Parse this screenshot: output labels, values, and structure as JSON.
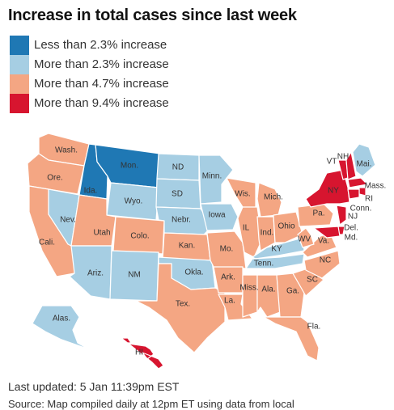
{
  "title": "Increase in total cases since last week",
  "legend": [
    {
      "label": "Less than 2.3% increase",
      "color": "#1f78b4"
    },
    {
      "label": "More than 2.3% increase",
      "color": "#a6cee3"
    },
    {
      "label": "More than 4.7% increase",
      "color": "#f4a683"
    },
    {
      "label": "More than 9.4% increase",
      "color": "#d7152f"
    }
  ],
  "chart_data": {
    "type": "choropleth",
    "title": "Increase in total cases since last week",
    "categories": [
      "Less than 2.3% increase",
      "More than 2.3% increase",
      "More than 4.7% increase",
      "More than 9.4% increase"
    ],
    "states": [
      {
        "label": "Wash.",
        "category": 2
      },
      {
        "label": "Ore.",
        "category": 2
      },
      {
        "label": "Cali.",
        "category": 2
      },
      {
        "label": "Nev.",
        "category": 1
      },
      {
        "label": "Ida.",
        "category": 0
      },
      {
        "label": "Mon.",
        "category": 0
      },
      {
        "label": "Wyo.",
        "category": 1
      },
      {
        "label": "Utah",
        "category": 2
      },
      {
        "label": "Ariz.",
        "category": 1
      },
      {
        "label": "Colo.",
        "category": 2
      },
      {
        "label": "NM",
        "category": 1
      },
      {
        "label": "ND",
        "category": 1
      },
      {
        "label": "SD",
        "category": 1
      },
      {
        "label": "Nebr.",
        "category": 1
      },
      {
        "label": "Kan.",
        "category": 2
      },
      {
        "label": "Okla.",
        "category": 1
      },
      {
        "label": "Tex.",
        "category": 2
      },
      {
        "label": "Minn.",
        "category": 1
      },
      {
        "label": "Iowa",
        "category": 1
      },
      {
        "label": "Mo.",
        "category": 2
      },
      {
        "label": "Ark.",
        "category": 2
      },
      {
        "label": "La.",
        "category": 2
      },
      {
        "label": "Wis.",
        "category": 2
      },
      {
        "label": "IL",
        "category": 2
      },
      {
        "label": "Mich.",
        "category": 2
      },
      {
        "label": "Ind.",
        "category": 2
      },
      {
        "label": "Ohio",
        "category": 2
      },
      {
        "label": "KY",
        "category": 1
      },
      {
        "label": "Tenn.",
        "category": 1
      },
      {
        "label": "Miss.",
        "category": 2
      },
      {
        "label": "Ala.",
        "category": 2
      },
      {
        "label": "Ga.",
        "category": 2
      },
      {
        "label": "Fla.",
        "category": 2
      },
      {
        "label": "SC",
        "category": 2
      },
      {
        "label": "NC",
        "category": 2
      },
      {
        "label": "Va.",
        "category": 2
      },
      {
        "label": "WV",
        "category": 2
      },
      {
        "label": "Pa.",
        "category": 2
      },
      {
        "label": "NY",
        "category": 3
      },
      {
        "label": "VT",
        "category": 3
      },
      {
        "label": "NH",
        "category": 3
      },
      {
        "label": "Mai.",
        "category": 1
      },
      {
        "label": "Mass.",
        "category": 3
      },
      {
        "label": "RI",
        "category": 3
      },
      {
        "label": "Conn.",
        "category": 3
      },
      {
        "label": "NJ",
        "category": 3
      },
      {
        "label": "Del.",
        "category": 3
      },
      {
        "label": "Md.",
        "category": 3
      },
      {
        "label": "Alas.",
        "category": 1
      },
      {
        "label": "HI",
        "category": 3
      }
    ]
  },
  "footer": {
    "updated": "Last updated: 5 Jan 11:39pm EST",
    "source": "Source: Map compiled daily at 12pm ET using data from local"
  }
}
